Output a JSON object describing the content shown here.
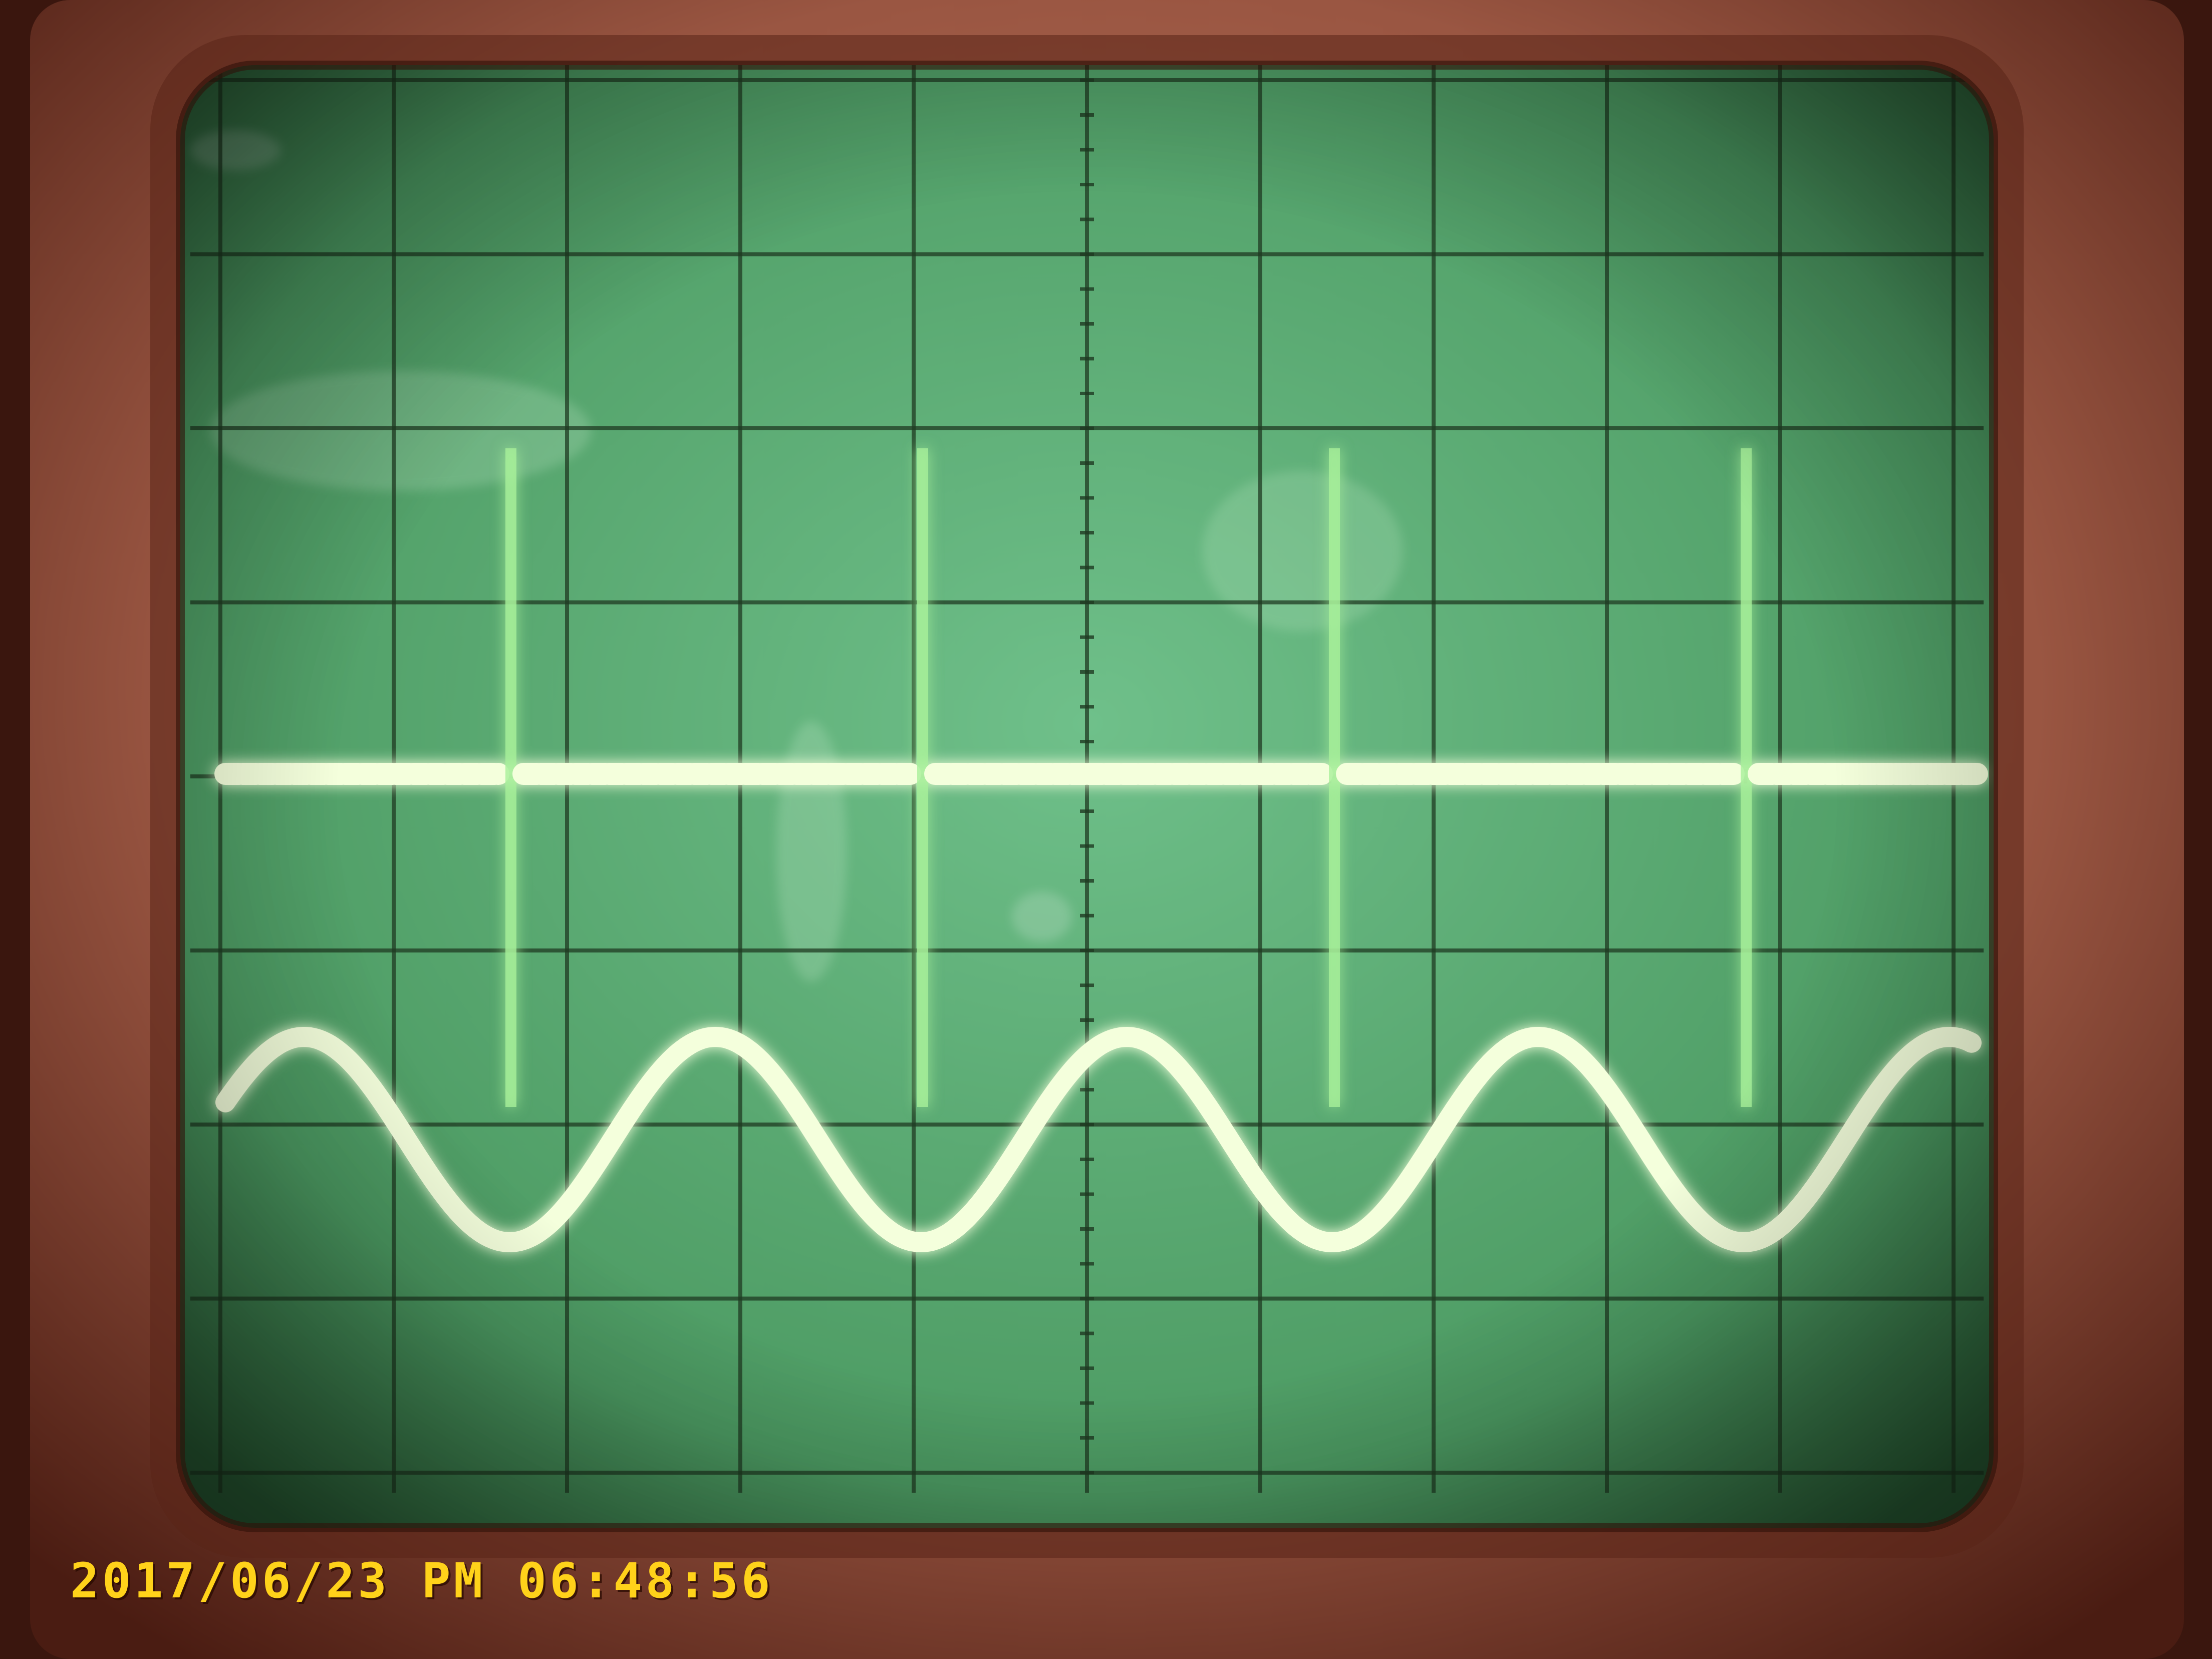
{
  "photo": {
    "subject": "oscilloscope-crt-screen",
    "timestamp": "2017/06/23 PM 06:48:56"
  },
  "screen": {
    "grid": {
      "columns": 10,
      "rows": 8
    },
    "phosphor_color": "#6fc08a",
    "trace_color": "#f4ffdc",
    "bezel_color": "#a6604a",
    "stamp_color": "#ffd21a"
  },
  "traces": {
    "pulse_train": {
      "pulse_count": 4
    },
    "sine_wave": {
      "visible_cycles": 4.25
    }
  }
}
